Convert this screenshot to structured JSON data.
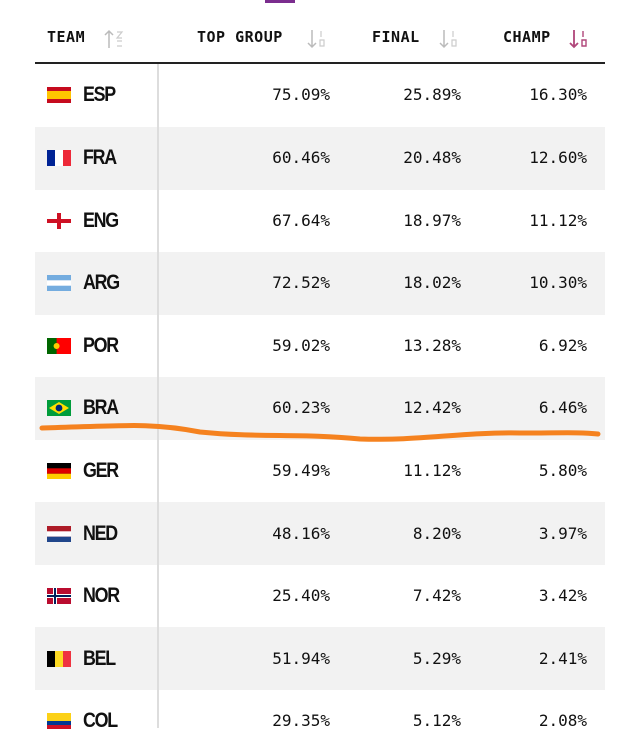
{
  "table": {
    "headers": [
      "TEAM",
      "TOP GROUP",
      "FINAL",
      "CHAMP"
    ],
    "rows": [
      [
        "ESP",
        "75.09%",
        "25.89%",
        "16.30%"
      ],
      [
        "FRA",
        "60.46%",
        "20.48%",
        "12.60%"
      ],
      [
        "ENG",
        "67.64%",
        "18.97%",
        "11.12%"
      ],
      [
        "ARG",
        "72.52%",
        "18.02%",
        "10.30%"
      ],
      [
        "POR",
        "59.02%",
        "13.28%",
        "6.92%"
      ],
      [
        "BRA",
        "60.23%",
        "12.42%",
        "6.46%"
      ],
      [
        "GER",
        "59.49%",
        "11.12%",
        "5.80%"
      ],
      [
        "NED",
        "48.16%",
        "8.20%",
        "3.97%"
      ],
      [
        "NOR",
        "25.40%",
        "7.42%",
        "3.42%"
      ],
      [
        "BEL",
        "51.94%",
        "5.29%",
        "2.41%"
      ],
      [
        "COL",
        "29.35%",
        "5.12%",
        "2.08%"
      ]
    ]
  }
}
